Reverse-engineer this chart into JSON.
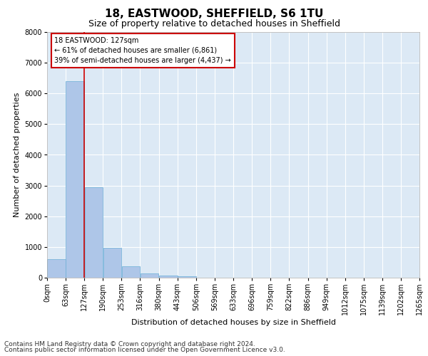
{
  "title1": "18, EASTWOOD, SHEFFIELD, S6 1TU",
  "title2": "Size of property relative to detached houses in Sheffield",
  "xlabel": "Distribution of detached houses by size in Sheffield",
  "ylabel": "Number of detached properties",
  "footer1": "Contains HM Land Registry data © Crown copyright and database right 2024.",
  "footer2": "Contains public sector information licensed under the Open Government Licence v3.0.",
  "annotation_title": "18 EASTWOOD: 127sqm",
  "annotation_line1": "← 61% of detached houses are smaller (6,861)",
  "annotation_line2": "39% of semi-detached houses are larger (4,437) →",
  "property_size_sqm": 127,
  "bin_edges": [
    0,
    63,
    127,
    190,
    253,
    316,
    380,
    443,
    506,
    569,
    633,
    696,
    759,
    822,
    886,
    949,
    1012,
    1075,
    1139,
    1202,
    1265
  ],
  "bin_labels": [
    "0sqm",
    "63sqm",
    "127sqm",
    "190sqm",
    "253sqm",
    "316sqm",
    "380sqm",
    "443sqm",
    "506sqm",
    "569sqm",
    "633sqm",
    "696sqm",
    "759sqm",
    "822sqm",
    "886sqm",
    "949sqm",
    "1012sqm",
    "1075sqm",
    "1139sqm",
    "1202sqm",
    "1265sqm"
  ],
  "bar_values": [
    600,
    6400,
    2950,
    975,
    375,
    150,
    75,
    50,
    0,
    0,
    0,
    0,
    0,
    0,
    0,
    0,
    0,
    0,
    0,
    0
  ],
  "bar_color": "#aec6e8",
  "bar_edge_color": "#6aaed6",
  "highlight_line_color": "#cc0000",
  "annotation_box_color": "#ffffff",
  "annotation_box_edge_color": "#cc0000",
  "background_color": "#dce9f5",
  "fig_background_color": "#ffffff",
  "ylim": [
    0,
    8000
  ],
  "yticks": [
    0,
    1000,
    2000,
    3000,
    4000,
    5000,
    6000,
    7000,
    8000
  ],
  "grid_color": "#ffffff",
  "title1_fontsize": 11,
  "title2_fontsize": 9,
  "axis_label_fontsize": 8,
  "tick_fontsize": 7,
  "annotation_fontsize": 7,
  "footer_fontsize": 6.5
}
